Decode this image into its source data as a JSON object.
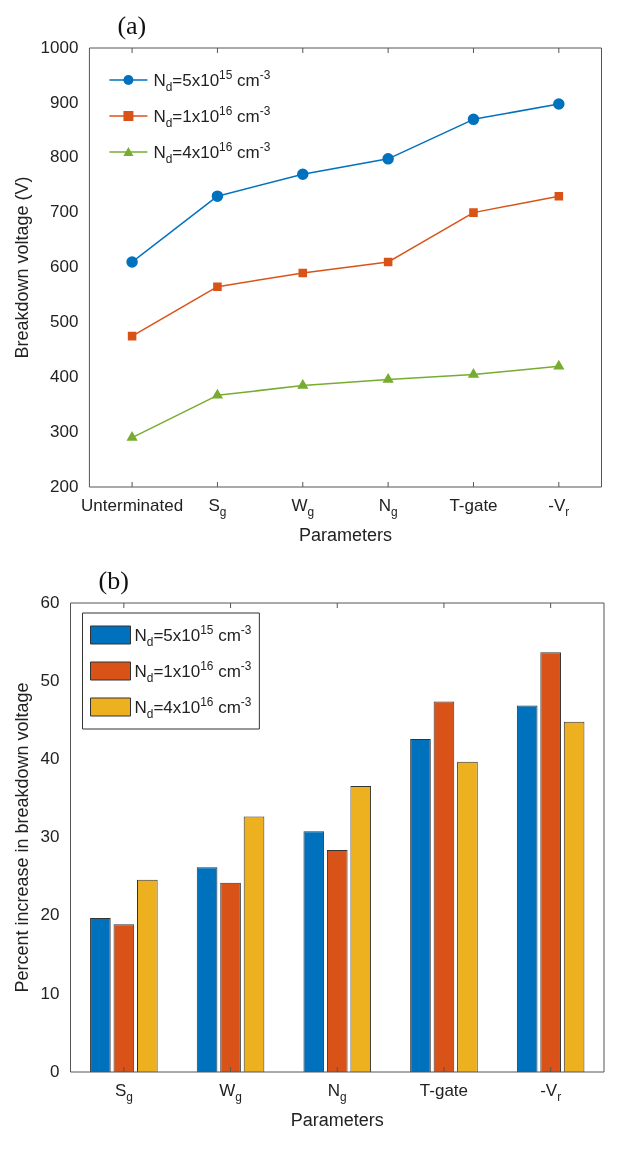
{
  "chart_data": [
    {
      "type": "line",
      "title": "(a)",
      "xlabel": "Parameters",
      "ylabel": "Breakdown voltage (V)",
      "categories": [
        "Unterminated",
        "S$_{g}$",
        "W$_{g}$",
        "N$_{g}$",
        "T-gate",
        "-V$_{r}$"
      ],
      "series": [
        {
          "name": "N$_{d}$=5x10$^{15}$ cm$^{-3}$",
          "color": "#0072bd",
          "marker": "circle",
          "values": [
            610,
            730,
            770,
            798,
            870,
            898
          ]
        },
        {
          "name": "N$_{d}$=1x10$^{16}$ cm$^{-3}$",
          "color": "#d95319",
          "marker": "square",
          "values": [
            475,
            565,
            590,
            610,
            700,
            730
          ]
        },
        {
          "name": "N$_{d}$=4x10$^{16}$ cm$^{-3}$",
          "color": "#77ac30",
          "marker": "triangle",
          "values": [
            290,
            367,
            385,
            396,
            405,
            420
          ]
        }
      ],
      "ylim": [
        200,
        1000
      ],
      "yticks": [
        200,
        300,
        400,
        500,
        600,
        700,
        800,
        900,
        1000
      ],
      "grid": false,
      "legend": "top left",
      "line_style": "solid"
    },
    {
      "type": "bar",
      "title": "(b)",
      "xlabel": "Parameters",
      "ylabel": "Percent increase in breakdown voltage",
      "categories": [
        "S$_{g}$",
        "W$_{g}$",
        "N$_{g}$",
        "T-gate",
        "-V$_{r}$"
      ],
      "series": [
        {
          "name": "N$_{d}$=5x10$^{15}$ cm$^{-3}$",
          "color": "#0072bd",
          "values": [
            19.7,
            26.2,
            30.8,
            42.6,
            46.9
          ]
        },
        {
          "name": "N$_{d}$=1x10$^{16}$ cm$^{-3}$",
          "color": "#d95319",
          "values": [
            18.9,
            24.2,
            28.4,
            47.4,
            53.7
          ]
        },
        {
          "name": "N$_{d}$=4x10$^{16}$ cm$^{-3}$",
          "color": "#edb120",
          "values": [
            24.6,
            32.7,
            36.6,
            39.7,
            44.8
          ]
        }
      ],
      "ylim": [
        0,
        60
      ],
      "yticks": [
        0,
        10,
        20,
        30,
        40,
        50,
        60
      ],
      "grid": false,
      "legend": "top left"
    }
  ]
}
